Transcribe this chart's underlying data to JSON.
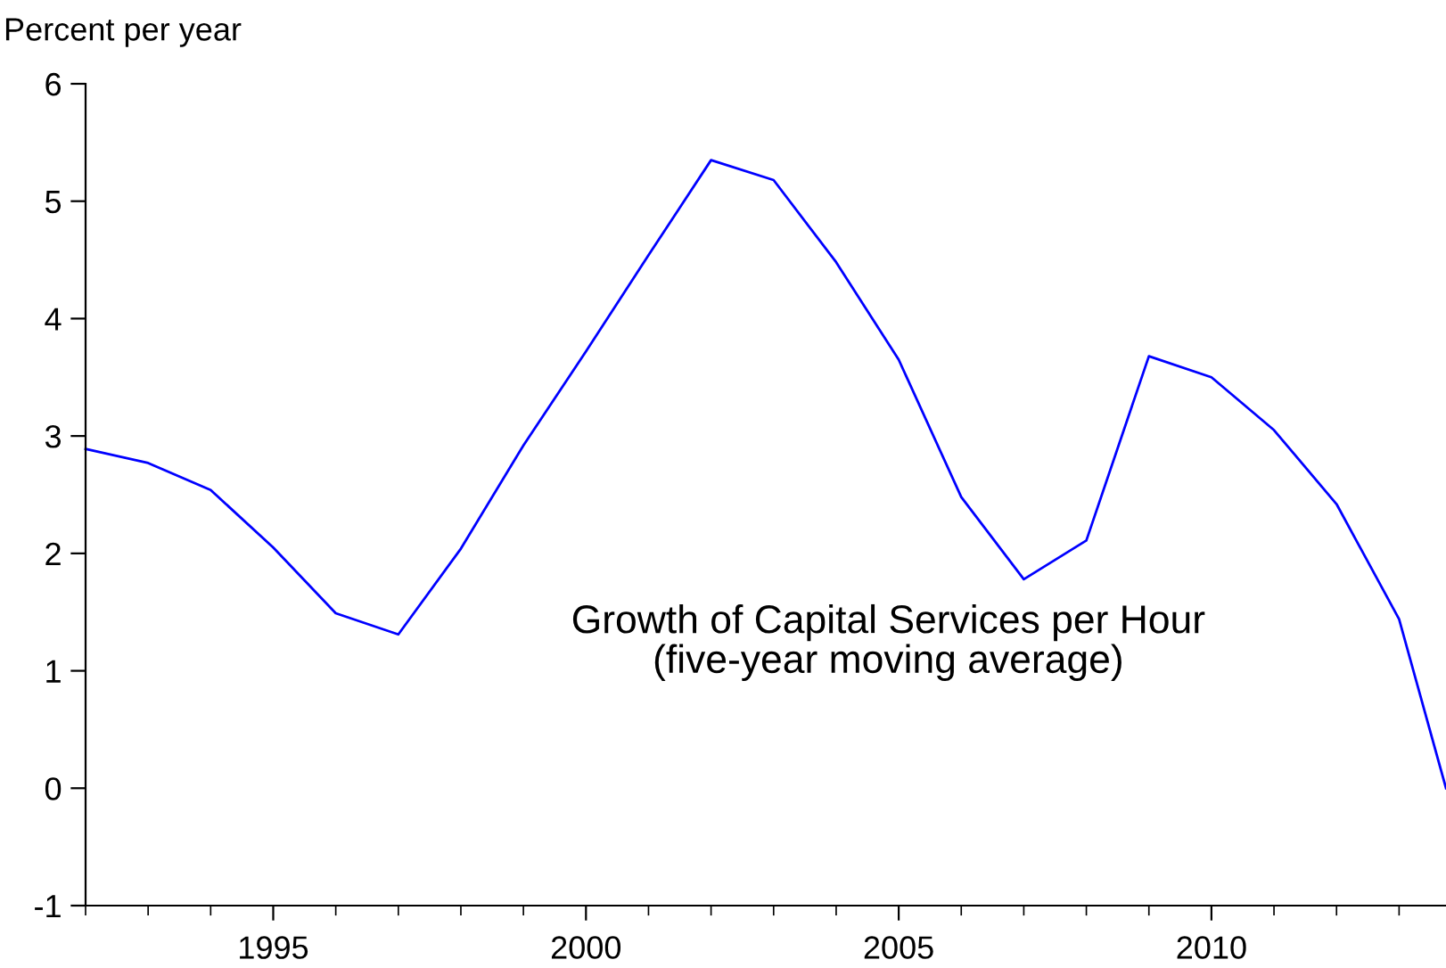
{
  "chart_data": {
    "type": "line",
    "ylabel": "Percent per year",
    "annotations": [
      "Growth of Capital Services per Hour\n(five-year moving average)"
    ],
    "x": [
      1992,
      1993,
      1994,
      1995,
      1996,
      1997,
      1998,
      1999,
      2000,
      2001,
      2002,
      2003,
      2004,
      2005,
      2006,
      2007,
      2008,
      2009,
      2010,
      2011,
      2012,
      2013,
      2013.75
    ],
    "series": [
      {
        "color": "#0000ff",
        "values": [
          2.89,
          2.77,
          2.54,
          2.05,
          1.49,
          1.31,
          2.04,
          2.92,
          3.72,
          4.54,
          5.35,
          5.18,
          4.48,
          3.65,
          2.48,
          1.78,
          2.11,
          3.68,
          3.5,
          3.05,
          2.42,
          1.44,
          0.0
        ]
      }
    ],
    "xlim": [
      1992,
      2013.75
    ],
    "ylim": [
      -1,
      6
    ],
    "xticks": [
      {
        "value": 1992,
        "label": null
      },
      {
        "value": 1993,
        "label": null
      },
      {
        "value": 1994,
        "label": null
      },
      1995,
      {
        "value": 1996,
        "label": null
      },
      {
        "value": 1997,
        "label": null
      },
      {
        "value": 1998,
        "label": null
      },
      {
        "value": 1999,
        "label": null
      },
      2000,
      {
        "value": 2001,
        "label": null
      },
      {
        "value": 2002,
        "label": null
      },
      {
        "value": 2003,
        "label": null
      },
      {
        "value": 2004,
        "label": null
      },
      2005,
      {
        "value": 2006,
        "label": null
      },
      {
        "value": 2007,
        "label": null
      },
      {
        "value": 2008,
        "label": null
      },
      {
        "value": 2009,
        "label": null
      },
      2010,
      {
        "value": 2011,
        "label": null
      },
      {
        "value": 2012,
        "label": null
      },
      {
        "value": 2013,
        "label": null
      }
    ],
    "yticks": [
      -1,
      0,
      1,
      2,
      3,
      4,
      5,
      6
    ],
    "grid": false,
    "legend": false
  }
}
